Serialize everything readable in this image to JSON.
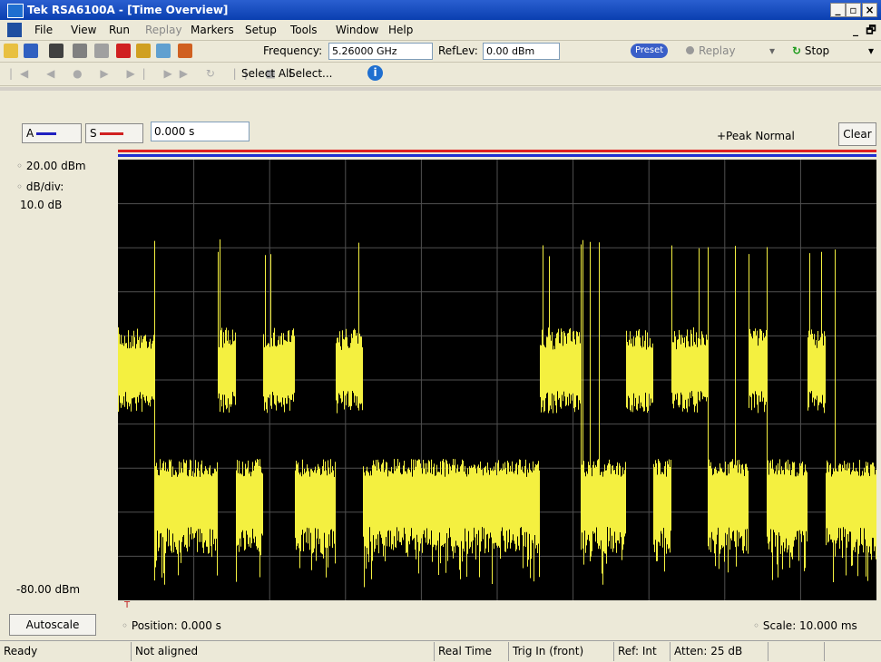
{
  "window": {
    "title": "Tek RSA6100A - [Time Overview]"
  },
  "menu": [
    "File",
    "View",
    "Run",
    "Replay",
    "Markers",
    "Setup",
    "Tools",
    "Window",
    "Help"
  ],
  "toolbar": {
    "frequency_label": "Frequency:",
    "frequency_value": "5.26000 GHz",
    "reflev_label": "RefLev:",
    "reflev_value": "0.00 dBm",
    "preset": "Preset",
    "replay": "Replay",
    "stop": "Stop"
  },
  "toolbar2": {
    "select_all": "Select All",
    "select": "Select..."
  },
  "display": {
    "trace_a": "A",
    "trace_s": "S",
    "time_field": "0.000 s",
    "detection": "+Peak Normal",
    "clear": "Clear",
    "ref_level": "20.00 dBm",
    "db_div_label": "dB/div:",
    "db_div_value": "10.0 dB",
    "bottom_level": "-80.00 dBm",
    "trigger": "T",
    "autoscale": "Autoscale",
    "position": "Position: 0.000 s",
    "scale": "Scale: 10.000 ms"
  },
  "status": [
    "Ready",
    "Not aligned",
    "Real Time",
    "Trig In (front)",
    "Ref: Int",
    "Atten: 25 dB"
  ]
}
